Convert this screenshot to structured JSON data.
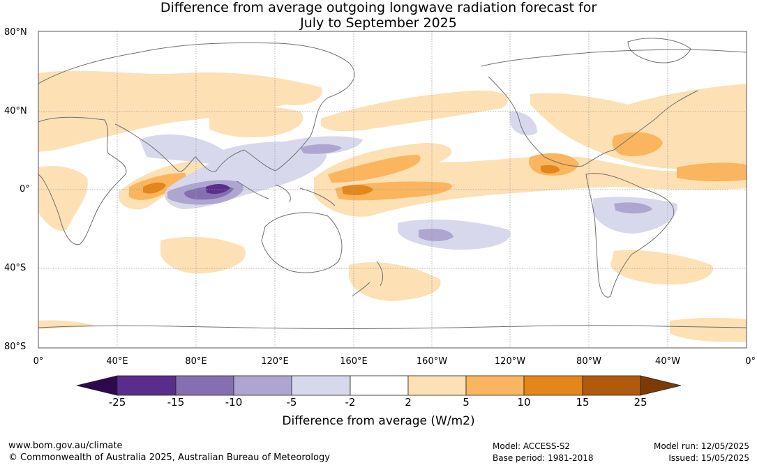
{
  "title": {
    "line1": "Difference from average outgoing longwave radiation forecast for",
    "line2": "July to September 2025"
  },
  "axes": {
    "lat_labels": [
      "80°N",
      "40°N",
      "0°",
      "40°S",
      "80°S"
    ],
    "lon_labels": [
      "0°",
      "40°E",
      "80°E",
      "120°E",
      "160°E",
      "160°W",
      "120°W",
      "80°W",
      "40°W",
      "0°"
    ]
  },
  "colorbar": {
    "title": "Difference from average (W/m2)",
    "ticks": [
      "-25",
      "-15",
      "-10",
      "-5",
      "-2",
      "2",
      "5",
      "10",
      "15",
      "25"
    ],
    "colors": [
      "#2d0a4e",
      "#5a2d8c",
      "#8470b0",
      "#aea6d1",
      "#d8d8ec",
      "#ffffff",
      "#fde0b4",
      "#fbb55e",
      "#e4861a",
      "#b25a0c",
      "#7d3a07"
    ]
  },
  "footer": {
    "url": "www.bom.gov.au/climate",
    "copyright": "© Commonwealth of Australia 2025, Australian Bureau of Meteorology",
    "model": "Model: ACCESS-S2",
    "base_period": "Base period: 1981-2018",
    "model_run": "Model run: 12/05/2025",
    "issued": "Issued: 15/05/2025"
  }
}
